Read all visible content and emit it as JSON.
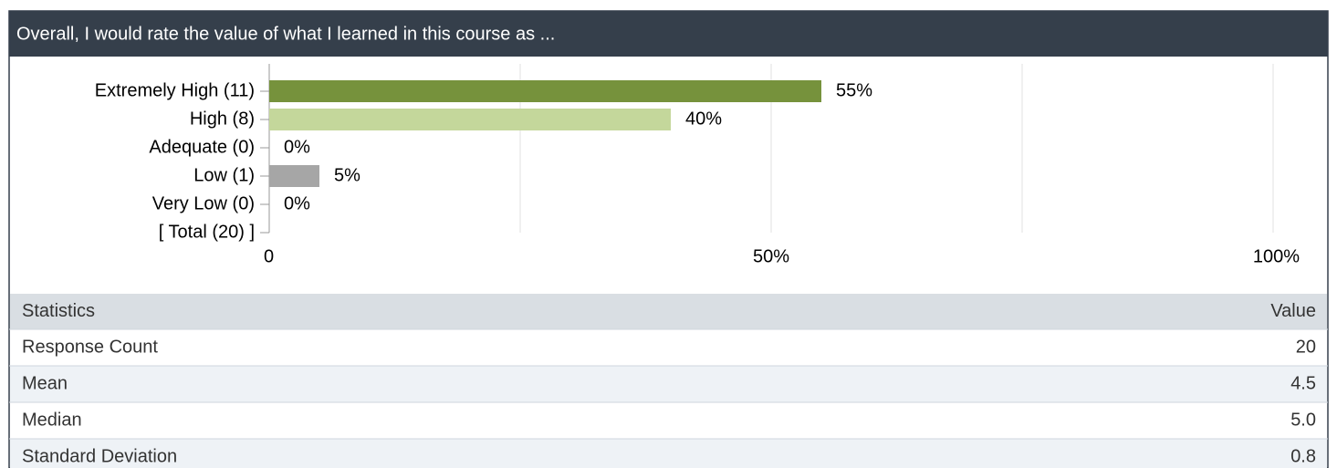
{
  "header": {
    "title": "Overall, I would rate the value of what I learned in this course as ..."
  },
  "chart_data": {
    "type": "hbar",
    "categories": [
      "Extremely High (11)",
      "High (8)",
      "Adequate (0)",
      "Low (1)",
      "Very Low (0)",
      "[ Total (20) ]"
    ],
    "values": [
      55,
      40,
      0,
      5,
      0,
      null
    ],
    "value_labels": [
      "55%",
      "40%",
      "0%",
      "5%",
      "0%",
      null
    ],
    "colors": [
      "#76923c",
      "#c4d79b",
      null,
      "#a6a6a6",
      null,
      null
    ],
    "xlim": [
      0,
      100
    ],
    "xticks": [
      0,
      {
        "value": 50,
        "label": "50%"
      },
      {
        "value": 100,
        "label": "100%"
      }
    ],
    "xminorticks": [
      25,
      75
    ],
    "grid": true
  },
  "table": {
    "columns": [
      "Statistics",
      "Value"
    ],
    "rows": [
      [
        "Response Count",
        "20"
      ],
      [
        "Mean",
        "4.5"
      ],
      [
        "Median",
        "5.0"
      ],
      [
        "Standard Deviation",
        "0.8"
      ]
    ]
  }
}
